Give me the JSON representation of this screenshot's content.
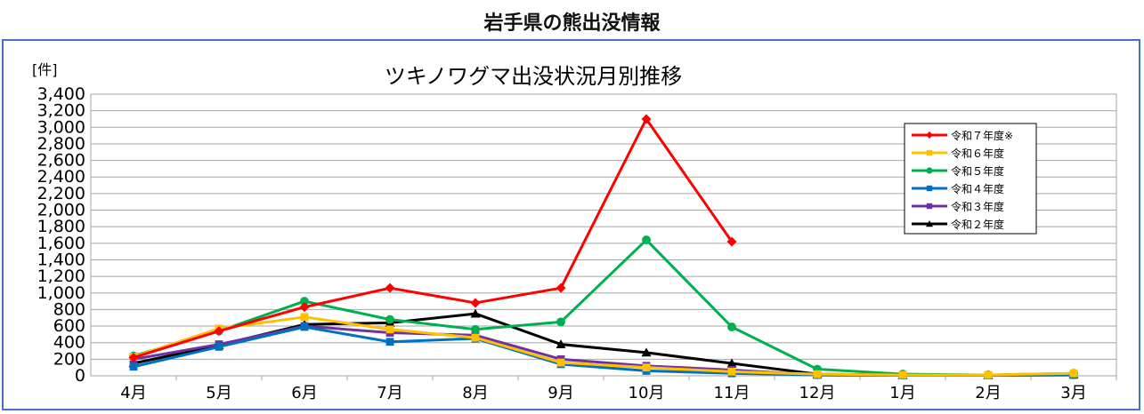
{
  "page": {
    "title": "岩手県の熊出没情報"
  },
  "chart_data": {
    "type": "line",
    "title": "ツキノワグマ出没状況月別推移",
    "ylabel": "[件]",
    "xlabel": "",
    "categories": [
      "4月",
      "5月",
      "6月",
      "7月",
      "8月",
      "9月",
      "10月",
      "11月",
      "12月",
      "1月",
      "2月",
      "3月"
    ],
    "ylim": [
      0,
      3400
    ],
    "yticks": [
      0,
      200,
      400,
      600,
      800,
      1000,
      1200,
      1400,
      1600,
      1800,
      2000,
      2200,
      2400,
      2600,
      2800,
      3000,
      3200,
      3400
    ],
    "ytick_labels": [
      "0",
      "200",
      "400",
      "600",
      "800",
      "1,000",
      "1,200",
      "1,400",
      "1,600",
      "1,800",
      "2,000",
      "2,200",
      "2,400",
      "2,600",
      "2,800",
      "3,000",
      "3,200",
      "3,400"
    ],
    "grid": true,
    "legend": "top-right",
    "series": [
      {
        "name": "令和７年度※",
        "color": "#ff0000",
        "marker": "diamond",
        "values": [
          220,
          540,
          830,
          1060,
          880,
          1060,
          3100,
          1620,
          null,
          null,
          null,
          null
        ]
      },
      {
        "name": "令和６年度",
        "color": "#ffc000",
        "marker": "square",
        "values": [
          230,
          570,
          710,
          560,
          460,
          160,
          100,
          50,
          20,
          10,
          10,
          30
        ]
      },
      {
        "name": "令和５年度",
        "color": "#00b050",
        "marker": "circle",
        "values": [
          240,
          540,
          900,
          680,
          560,
          650,
          1640,
          590,
          80,
          20,
          10,
          30
        ]
      },
      {
        "name": "令和４年度",
        "color": "#0070c0",
        "marker": "square",
        "values": [
          110,
          350,
          590,
          410,
          450,
          140,
          60,
          30,
          10,
          5,
          5,
          10
        ]
      },
      {
        "name": "令和３年度",
        "color": "#7030a0",
        "marker": "square",
        "values": [
          200,
          380,
          600,
          520,
          490,
          200,
          120,
          70,
          10,
          5,
          5,
          10
        ]
      },
      {
        "name": "令和２年度",
        "color": "#000000",
        "marker": "triangle",
        "values": [
          150,
          370,
          620,
          640,
          750,
          380,
          280,
          150,
          20,
          10,
          10,
          20
        ]
      }
    ]
  }
}
